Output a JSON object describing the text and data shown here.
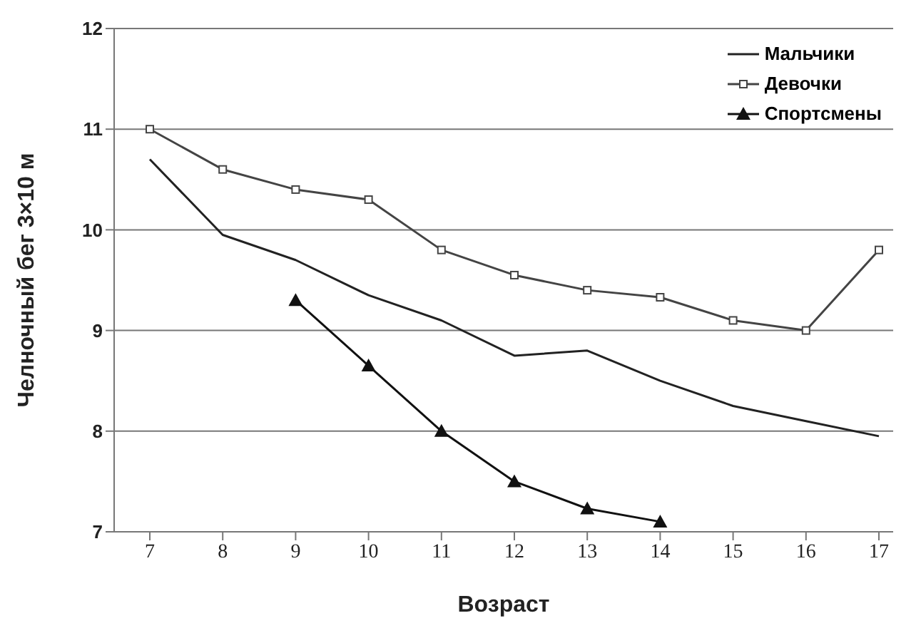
{
  "chart_data": {
    "type": "line",
    "xlabel": "Возраст",
    "ylabel": "Челночный бег 3×10 м",
    "categories": [
      "7",
      "8",
      "9",
      "10",
      "11",
      "12",
      "13",
      "14",
      "15",
      "16",
      "17"
    ],
    "series": [
      {
        "name": "Мальчики",
        "color": "#222222",
        "marker": "none",
        "values": [
          10.7,
          9.95,
          9.7,
          9.35,
          9.1,
          8.75,
          8.8,
          8.5,
          8.25,
          8.1,
          7.95
        ]
      },
      {
        "name": "Девочки",
        "color": "#444444",
        "marker": "square",
        "values": [
          11.0,
          10.6,
          10.4,
          10.3,
          9.8,
          9.55,
          9.4,
          9.33,
          9.1,
          9.0,
          9.8
        ]
      },
      {
        "name": "Спортсмены",
        "color": "#111111",
        "marker": "triangle",
        "values": [
          null,
          null,
          9.3,
          8.65,
          8.0,
          7.5,
          7.23,
          7.1,
          null,
          null,
          null
        ]
      }
    ],
    "ylim": [
      7,
      12
    ],
    "yticks": [
      7,
      8,
      9,
      10,
      11,
      12
    ],
    "grid": "y",
    "legend": "top right"
  }
}
